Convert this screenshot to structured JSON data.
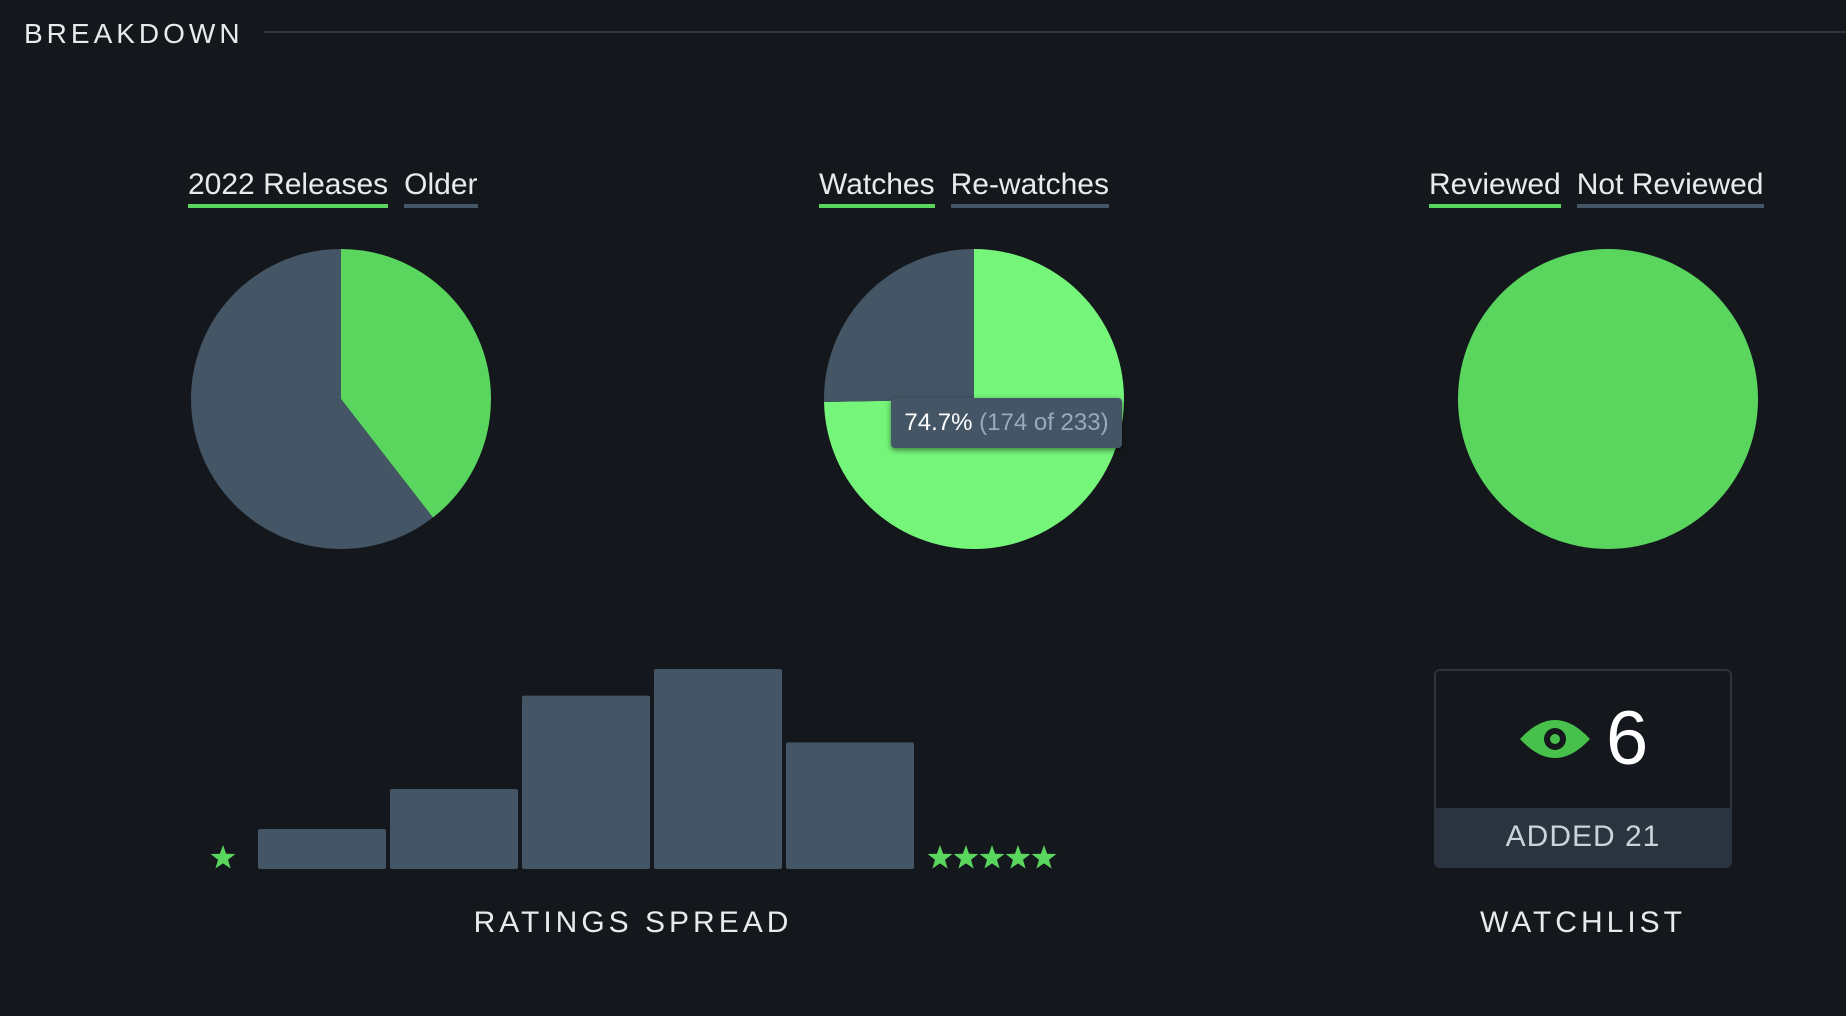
{
  "section": {
    "title": "BREAKDOWN"
  },
  "colors": {
    "background": "#14181c",
    "accent": "#5ad65f",
    "muted": "#445566",
    "highlight": "#75f67a"
  },
  "chart_data": [
    {
      "type": "pie",
      "legend": [
        "2022 Releases",
        "Older"
      ],
      "slices": [
        {
          "label": "2022 Releases",
          "value": 39.5
        },
        {
          "label": "Older",
          "value": 60.5
        }
      ]
    },
    {
      "type": "pie",
      "legend": [
        "Watches",
        "Re-watches"
      ],
      "slices": [
        {
          "label": "Watches",
          "value": 174
        },
        {
          "label": "Re-watches",
          "value": 59
        }
      ],
      "tooltip": {
        "percent": "74.7%",
        "detail": "(174 of 233)"
      }
    },
    {
      "type": "pie",
      "legend": [
        "Reviewed",
        "Not Reviewed"
      ],
      "slices": [
        {
          "label": "Reviewed",
          "value": 100
        },
        {
          "label": "Not Reviewed",
          "value": 0
        }
      ]
    },
    {
      "type": "bar",
      "title": "RATINGS SPREAD",
      "low_label_icon": "star-icon",
      "high_label_icon": "five-stars-icon",
      "values": [
        6,
        12,
        26,
        30,
        19
      ]
    }
  ],
  "watchlist": {
    "count": "6",
    "added": "ADDED 21",
    "caption": "WATCHLIST",
    "icon": "eye-icon"
  }
}
